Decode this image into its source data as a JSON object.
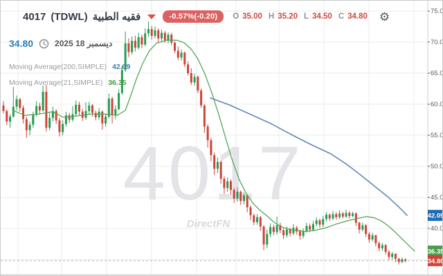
{
  "header": {
    "symbol_code": "4017",
    "exchange": "(TDWL)",
    "symbol_name_ar": "فقيه الطبية",
    "change_badge": "-0.57%(-0.20)",
    "ohlc": [
      {
        "label": "O",
        "value": "35.00"
      },
      {
        "label": "H",
        "value": "35.20"
      },
      {
        "label": "L",
        "value": "34.50"
      },
      {
        "label": "C",
        "value": "34.80"
      }
    ],
    "last_price": "34.80",
    "date_ar": "ديسمبر 18 2025"
  },
  "indicators": [
    {
      "label": "Moving Average(200,SIMPLE)",
      "value": "42.09"
    },
    {
      "label": "Moving Average(21,SIMPLE)",
      "value": "36.35"
    }
  ],
  "watermark": {
    "big": "4017",
    "brand": "DirectFN"
  },
  "colors": {
    "candle_up": "#279b53",
    "candle_down": "#cc4437",
    "ma21_line": "#52a555",
    "ma200_line": "#6188b5",
    "grid": "#ebebee",
    "axis": "#cccccc",
    "tick_text": "#555a60",
    "watermark": "#e4e4e8",
    "brandmark": "#d9d9de",
    "badge_blue": "#1f6cb5",
    "badge_green": "#4a9e4a",
    "badge_red": "#d04438",
    "last_price_line": "#b0b0b0"
  },
  "chart_data": {
    "type": "candlestick",
    "title": "4017 (TDWL) فقيه الطبية",
    "ylabel": "",
    "ylim": [
      32.5,
      76.5
    ],
    "yticks": [
      75,
      70,
      65,
      60,
      55,
      50,
      45,
      40,
      35
    ],
    "ytick_labels": [
      "75.00",
      "70.00",
      "65.00",
      "60.00",
      "55.00",
      "50.00",
      "45.00",
      "40.00",
      "35.00"
    ],
    "grid": true,
    "last_price": 34.8,
    "axis_badges": [
      {
        "label": "42.09",
        "price": 42.09,
        "color": "#1f6cb5"
      },
      {
        "label": "36.35",
        "price": 36.35,
        "color": "#4a9e4a"
      },
      {
        "label": "34.80",
        "price": 34.8,
        "color": "#d04438"
      }
    ],
    "candles": [
      [
        59.8,
        60.5,
        58.5,
        58.9
      ],
      [
        58.9,
        59.2,
        56.6,
        57.2
      ],
      [
        57.2,
        58.4,
        56.2,
        58.0
      ],
      [
        58.0,
        62.8,
        57.8,
        59.6
      ],
      [
        59.6,
        61.4,
        59.0,
        60.8
      ],
      [
        60.8,
        61.0,
        58.8,
        59.4
      ],
      [
        59.4,
        59.8,
        56.9,
        57.6
      ],
      [
        57.6,
        58.0,
        54.6,
        55.8
      ],
      [
        55.8,
        57.2,
        55.0,
        56.7
      ],
      [
        56.7,
        58.8,
        56.2,
        58.3
      ],
      [
        58.3,
        60.5,
        58.0,
        59.7
      ],
      [
        59.7,
        60.2,
        58.4,
        59.0
      ],
      [
        59.0,
        63.0,
        58.8,
        62.0
      ],
      [
        62.0,
        63.1,
        55.6,
        56.2
      ],
      [
        56.2,
        58.6,
        55.8,
        57.8
      ],
      [
        57.8,
        59.6,
        57.2,
        58.9
      ],
      [
        58.9,
        59.2,
        56.8,
        57.4
      ],
      [
        57.4,
        57.8,
        54.8,
        55.5
      ],
      [
        55.5,
        57.4,
        55.0,
        56.8
      ],
      [
        56.8,
        58.8,
        56.4,
        58.2
      ],
      [
        58.2,
        58.6,
        57.0,
        57.5
      ],
      [
        57.5,
        59.7,
        57.2,
        58.4
      ],
      [
        58.4,
        60.6,
        58.1,
        59.9
      ],
      [
        59.9,
        60.4,
        58.2,
        58.8
      ],
      [
        58.8,
        59.2,
        57.3,
        57.8
      ],
      [
        57.8,
        60.3,
        57.5,
        58.9
      ],
      [
        58.9,
        60.4,
        58.4,
        59.8
      ],
      [
        59.8,
        60.0,
        58.0,
        58.6
      ],
      [
        58.6,
        59.0,
        57.4,
        57.9
      ],
      [
        57.9,
        59.4,
        57.5,
        58.8
      ],
      [
        58.8,
        59.0,
        55.9,
        56.9
      ],
      [
        56.9,
        58.5,
        56.4,
        58.0
      ],
      [
        58.0,
        61.7,
        57.7,
        60.9
      ],
      [
        60.9,
        61.2,
        56.9,
        58.3
      ],
      [
        58.3,
        59.8,
        57.6,
        59.2
      ],
      [
        59.2,
        62.4,
        59.0,
        61.8
      ],
      [
        61.8,
        66.2,
        61.5,
        65.5
      ],
      [
        65.5,
        71.7,
        65.2,
        69.8
      ],
      [
        69.8,
        70.6,
        67.6,
        68.4
      ],
      [
        68.4,
        70.9,
        68.0,
        70.2
      ],
      [
        70.2,
        71.0,
        68.5,
        69.1
      ],
      [
        69.1,
        71.5,
        68.8,
        70.8
      ],
      [
        70.8,
        71.2,
        69.0,
        69.6
      ],
      [
        69.6,
        72.2,
        69.3,
        71.4
      ],
      [
        71.4,
        73.3,
        70.8,
        72.1
      ],
      [
        72.1,
        72.6,
        70.4,
        71.0
      ],
      [
        71.0,
        72.5,
        70.6,
        71.9
      ],
      [
        71.9,
        72.2,
        70.0,
        70.6
      ],
      [
        70.6,
        72.0,
        70.1,
        71.5
      ],
      [
        71.5,
        71.8,
        69.9,
        70.3
      ],
      [
        70.3,
        71.6,
        69.8,
        71.2
      ],
      [
        71.2,
        71.5,
        69.5,
        69.9
      ],
      [
        69.9,
        70.1,
        68.2,
        68.6
      ],
      [
        68.6,
        69.3,
        67.1,
        67.5
      ],
      [
        67.5,
        68.8,
        67.0,
        68.3
      ],
      [
        68.3,
        68.5,
        66.0,
        66.4
      ],
      [
        66.4,
        66.9,
        64.6,
        65.0
      ],
      [
        65.0,
        65.8,
        63.1,
        63.5
      ],
      [
        63.5,
        64.9,
        63.0,
        64.4
      ],
      [
        64.4,
        64.6,
        61.8,
        62.2
      ],
      [
        62.2,
        62.5,
        59.4,
        59.8
      ],
      [
        59.8,
        60.0,
        55.4,
        56.4
      ],
      [
        56.4,
        56.8,
        53.0,
        54.2
      ],
      [
        54.2,
        54.6,
        50.8,
        51.8
      ],
      [
        51.8,
        52.2,
        48.6,
        49.6
      ],
      [
        49.6,
        51.4,
        48.9,
        50.7
      ],
      [
        50.7,
        50.9,
        47.2,
        48.0
      ],
      [
        48.0,
        48.4,
        45.6,
        46.5
      ],
      [
        46.5,
        48.2,
        45.9,
        47.6
      ],
      [
        47.6,
        47.9,
        45.5,
        46.2
      ],
      [
        46.2,
        46.5,
        44.1,
        44.8
      ],
      [
        44.8,
        46.6,
        44.3,
        45.9
      ],
      [
        45.9,
        46.1,
        43.8,
        44.4
      ],
      [
        44.4,
        45.8,
        43.9,
        45.3
      ],
      [
        45.3,
        45.5,
        42.6,
        43.4
      ],
      [
        43.4,
        43.7,
        41.3,
        42.1
      ],
      [
        42.1,
        42.4,
        40.5,
        41.0
      ],
      [
        41.0,
        42.3,
        40.6,
        41.8
      ],
      [
        41.8,
        42.0,
        39.6,
        40.3
      ],
      [
        40.3,
        40.5,
        36.5,
        37.4
      ],
      [
        37.4,
        39.8,
        36.8,
        39.1
      ],
      [
        39.1,
        40.8,
        38.6,
        40.2
      ],
      [
        40.2,
        40.6,
        38.9,
        39.4
      ],
      [
        39.4,
        41.9,
        39.0,
        40.5
      ],
      [
        40.5,
        40.9,
        39.2,
        39.7
      ],
      [
        39.7,
        40.0,
        38.3,
        38.9
      ],
      [
        38.9,
        40.3,
        38.5,
        39.8
      ],
      [
        39.8,
        40.1,
        38.7,
        39.2
      ],
      [
        39.2,
        40.7,
        38.9,
        40.1
      ],
      [
        40.1,
        40.4,
        39.0,
        39.5
      ],
      [
        39.5,
        39.8,
        38.2,
        38.8
      ],
      [
        38.8,
        40.0,
        38.4,
        39.6
      ],
      [
        39.6,
        40.9,
        39.3,
        40.4
      ],
      [
        40.4,
        40.8,
        39.4,
        39.8
      ],
      [
        39.8,
        41.2,
        39.5,
        40.7
      ],
      [
        40.7,
        41.8,
        40.3,
        41.3
      ],
      [
        41.3,
        41.6,
        40.1,
        40.6
      ],
      [
        40.6,
        42.0,
        40.2,
        41.5
      ],
      [
        41.5,
        42.6,
        41.1,
        42.2
      ],
      [
        42.2,
        42.4,
        41.2,
        41.6
      ],
      [
        41.6,
        42.8,
        41.3,
        42.3
      ],
      [
        42.3,
        42.6,
        41.4,
        41.8
      ],
      [
        41.8,
        42.9,
        41.5,
        42.4
      ],
      [
        42.4,
        42.7,
        41.6,
        41.9
      ],
      [
        41.9,
        43.0,
        41.7,
        42.5
      ],
      [
        42.5,
        42.8,
        41.6,
        42.0
      ],
      [
        42.0,
        42.7,
        41.8,
        42.4
      ],
      [
        42.4,
        42.6,
        40.4,
        40.9
      ],
      [
        40.9,
        41.1,
        39.2,
        39.8
      ],
      [
        39.8,
        40.9,
        39.5,
        40.5
      ],
      [
        40.5,
        40.7,
        38.6,
        39.1
      ],
      [
        39.1,
        39.4,
        37.7,
        38.2
      ],
      [
        38.2,
        39.3,
        37.9,
        38.9
      ],
      [
        38.9,
        39.0,
        37.1,
        37.6
      ],
      [
        37.6,
        37.9,
        36.3,
        36.8
      ],
      [
        36.8,
        37.7,
        36.4,
        37.3
      ],
      [
        37.3,
        37.5,
        35.8,
        36.2
      ],
      [
        36.2,
        36.5,
        34.9,
        35.4
      ],
      [
        35.4,
        36.2,
        35.0,
        35.9
      ],
      [
        35.9,
        36.0,
        34.6,
        35.1
      ],
      [
        35.1,
        35.3,
        34.2,
        34.6
      ],
      [
        34.6,
        35.3,
        34.4,
        35.0
      ],
      [
        35.0,
        35.2,
        34.5,
        34.8
      ]
    ],
    "series": [
      {
        "name": "MA21",
        "points": [
          [
            2.9,
            59.0
          ],
          [
            6.5,
            58.2
          ],
          [
            10.7,
            58.4
          ],
          [
            14.9,
            58.8
          ],
          [
            18.1,
            57.9
          ],
          [
            22.3,
            58.1
          ],
          [
            26.5,
            58.4
          ],
          [
            30.7,
            58.4
          ],
          [
            34.5,
            58.2
          ],
          [
            37.0,
            59.0
          ],
          [
            38.7,
            61.5
          ],
          [
            40.3,
            64.0
          ],
          [
            42.2,
            66.5
          ],
          [
            44.3,
            68.6
          ],
          [
            46.4,
            69.8
          ],
          [
            49.6,
            70.3
          ],
          [
            52.7,
            70.3
          ],
          [
            54.8,
            69.9
          ],
          [
            56.9,
            68.9
          ],
          [
            59.0,
            67.3
          ],
          [
            61.1,
            64.9
          ],
          [
            63.2,
            61.9
          ],
          [
            65.3,
            58.4
          ],
          [
            67.4,
            54.6
          ],
          [
            69.5,
            50.9
          ],
          [
            71.6,
            47.8
          ],
          [
            73.7,
            45.6
          ],
          [
            75.8,
            44.0
          ],
          [
            77.9,
            42.9
          ],
          [
            80.0,
            42.0
          ],
          [
            82.1,
            41.0
          ],
          [
            84.2,
            40.3
          ],
          [
            86.3,
            39.9
          ],
          [
            88.4,
            39.7
          ],
          [
            91.6,
            39.5
          ],
          [
            94.7,
            39.7
          ],
          [
            97.9,
            40.1
          ],
          [
            101.0,
            40.7
          ],
          [
            104.2,
            41.2
          ],
          [
            107.4,
            41.6
          ],
          [
            110.1,
            41.9
          ],
          [
            112.6,
            41.7
          ],
          [
            114.7,
            41.2
          ],
          [
            116.8,
            40.4
          ],
          [
            118.9,
            39.4
          ],
          [
            121.0,
            38.3
          ],
          [
            123.1,
            37.2
          ],
          [
            124.8,
            36.35
          ]
        ]
      },
      {
        "name": "MA200",
        "points": [
          [
            62.8,
            61.0
          ],
          [
            68.5,
            59.9
          ],
          [
            74.8,
            58.4
          ],
          [
            81.1,
            56.9
          ],
          [
            87.4,
            55.1
          ],
          [
            93.7,
            53.4
          ],
          [
            99.4,
            52.0
          ],
          [
            104.2,
            50.3
          ],
          [
            108.4,
            48.6
          ],
          [
            112.6,
            46.8
          ],
          [
            116.4,
            45.2
          ],
          [
            119.3,
            43.8
          ],
          [
            121.4,
            42.7
          ],
          [
            122.5,
            42.09
          ]
        ]
      }
    ]
  }
}
